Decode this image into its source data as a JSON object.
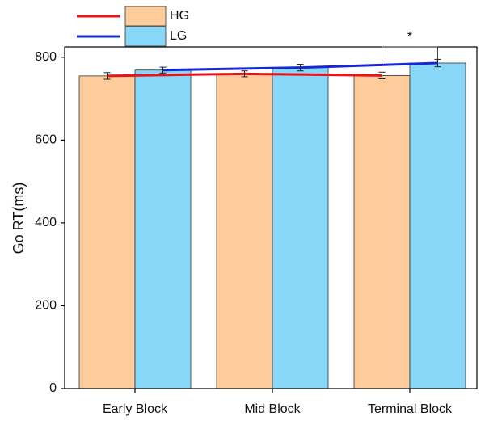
{
  "chart_data": {
    "type": "bar",
    "y_label": "Go RT(ms)",
    "categories": [
      "Early Block",
      "Mid Block",
      "Terminal Block"
    ],
    "series": [
      {
        "name": "HG",
        "color": "#fdcc9a",
        "line_color": "#e8141b",
        "values": [
          755,
          760,
          756
        ],
        "errors": [
          8,
          7,
          8
        ]
      },
      {
        "name": "LG",
        "color": "#88d6f8",
        "line_color": "#1727d6",
        "values": [
          769,
          775,
          786
        ],
        "errors": [
          7,
          8,
          9
        ]
      }
    ],
    "ylim": [
      0,
      825
    ],
    "yticks": [
      0,
      200,
      400,
      600,
      800
    ],
    "annotations": [
      {
        "text": "*"
      }
    ]
  }
}
